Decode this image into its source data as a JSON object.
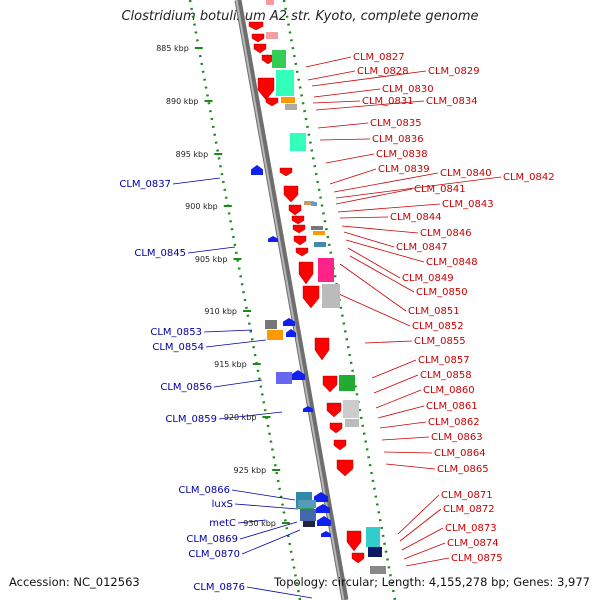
{
  "title": "Clostridium botulinum A2 str. Kyoto, complete genome",
  "accession": "Accession: NC_012563",
  "stats": "Topology: circular; Length: 4,155,278 bp; Genes: 3,977",
  "colors": {
    "plus_label": "#cc0000",
    "minus_label": "#0000aa",
    "ruler": "#1a8a1a",
    "backbone": "#8a8a8a",
    "gene_red": "#ff0000",
    "gene_blue": "#1020ee"
  },
  "scale_ticks": [
    "885 kbp",
    "890 kbp",
    "895 kbp",
    "900 kbp",
    "905 kbp",
    "910 kbp",
    "915 kbp",
    "920 kbp",
    "925 kbp",
    "930 kbp"
  ],
  "plus_labels": [
    "CLM_0827",
    "CLM_0828",
    "CLM_0829",
    "CLM_0830",
    "CLM_0831",
    "CLM_0834",
    "CLM_0835",
    "CLM_0836",
    "CLM_0838",
    "CLM_0839",
    "CLM_0840",
    "CLM_0842",
    "CLM_0841",
    "CLM_0843",
    "CLM_0844",
    "CLM_0846",
    "CLM_0847",
    "CLM_0848",
    "CLM_0849",
    "CLM_0850",
    "CLM_0851",
    "CLM_0852",
    "CLM_0855",
    "CLM_0857",
    "CLM_0858",
    "CLM_0860",
    "CLM_0861",
    "CLM_0862",
    "CLM_0863",
    "CLM_0864",
    "CLM_0865",
    "CLM_0871",
    "CLM_0872",
    "CLM_0873",
    "CLM_0874",
    "CLM_0875"
  ],
  "minus_labels": [
    "CLM_0837",
    "CLM_0845",
    "CLM_0853",
    "CLM_0854",
    "CLM_0856",
    "CLM_0859",
    "CLM_0866",
    "luxS",
    "metC",
    "CLM_0869",
    "CLM_0870",
    "CLM_0876"
  ]
}
